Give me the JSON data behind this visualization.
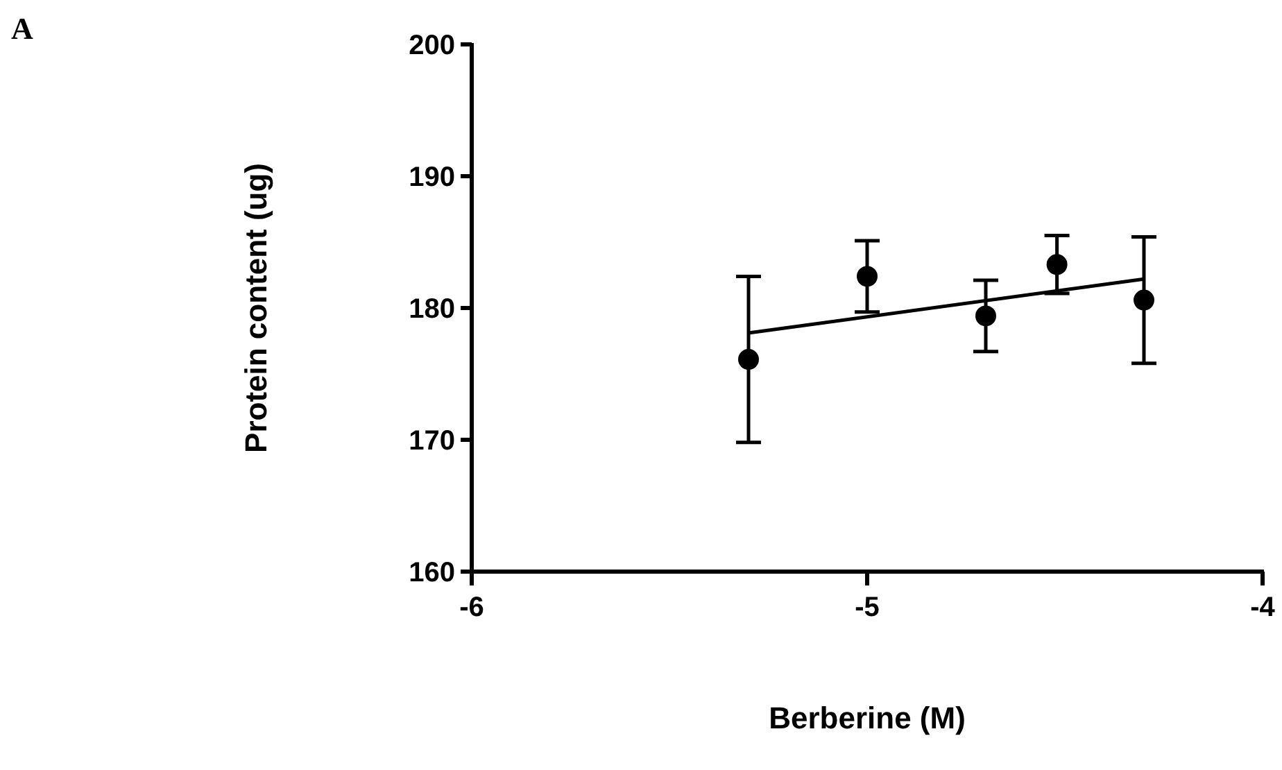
{
  "chart_data": {
    "type": "scatter",
    "xlabel": "Berberine (M)",
    "ylabel": "Protein content (ug)",
    "annotations": [
      "A"
    ],
    "xlim": [
      -6,
      -4
    ],
    "xticks": [
      -6,
      -5,
      -4
    ],
    "ylim": [
      160,
      200
    ],
    "yticks": [
      160,
      170,
      180,
      190,
      200
    ],
    "grid": false,
    "series": [
      {
        "color": "#000000",
        "marker": "circle",
        "x": [
          -5.3,
          -5.0,
          -4.7,
          -4.52,
          -4.3
        ],
        "values": [
          176.1,
          182.4,
          179.4,
          183.3,
          180.6
        ],
        "errors": [
          6.3,
          2.7,
          2.7,
          2.2,
          4.8
        ]
      },
      {
        "type": "line",
        "color": "#000000",
        "marker": "none",
        "line_style": "solid",
        "x": [
          -5.3,
          -4.3
        ],
        "values": [
          178.1,
          182.2
        ]
      }
    ]
  }
}
